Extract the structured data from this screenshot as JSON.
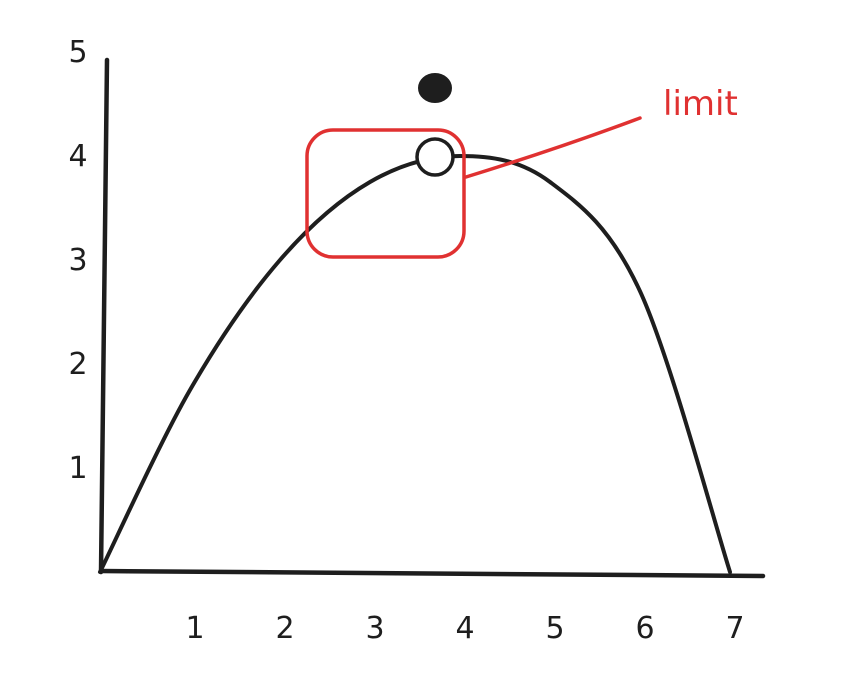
{
  "chart_data": {
    "type": "line",
    "title": "",
    "xlabel": "",
    "ylabel": "",
    "xlim": [
      0,
      7.6
    ],
    "ylim": [
      0,
      5.3
    ],
    "x_ticks": [
      "1",
      "2",
      "3",
      "4",
      "5",
      "6",
      "7"
    ],
    "y_ticks": [
      "1",
      "2",
      "3",
      "4",
      "5"
    ],
    "grid": false,
    "series": [
      {
        "points": [
          [
            0,
            0
          ],
          [
            1,
            1.75
          ],
          [
            2,
            3.0
          ],
          [
            3,
            3.75
          ],
          [
            4,
            4.0
          ],
          [
            5,
            3.75
          ],
          [
            6,
            2.7
          ],
          [
            7,
            0
          ]
        ],
        "color": "#1e1e1e"
      }
    ],
    "open_point": {
      "x": 4,
      "y": 4
    },
    "filled_point": {
      "x": 4,
      "y": 5
    },
    "annotation": {
      "text": "limit",
      "color": "#e03131"
    }
  }
}
